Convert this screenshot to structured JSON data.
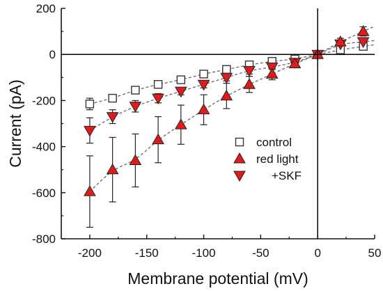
{
  "chart_data": {
    "type": "scatter",
    "xlabel": "Membrane potential (mV)",
    "ylabel": "Current (pA)",
    "xlim": [
      -225,
      50
    ],
    "ylim": [
      -800,
      200
    ],
    "xticks": [
      -200,
      -150,
      -100,
      -50,
      0,
      50
    ],
    "yticks": [
      200,
      0,
      -200,
      -400,
      -600,
      -800
    ],
    "grid": false,
    "legend_position": "center-right",
    "series": [
      {
        "name": "control",
        "marker": "open-square",
        "color": "#333333",
        "x": [
          -200,
          -180,
          -160,
          -140,
          -120,
          -100,
          -80,
          -60,
          -40,
          -20,
          0,
          20,
          40
        ],
        "y": [
          -215,
          -190,
          -155,
          -130,
          -110,
          -85,
          -65,
          -45,
          -30,
          -20,
          0,
          20,
          35
        ],
        "err": [
          25,
          15,
          15,
          15,
          15,
          15,
          10,
          10,
          10,
          8,
          8,
          15,
          15
        ]
      },
      {
        "name": "red light",
        "marker": "triangle-up",
        "color": "#e11b1b",
        "x": [
          -200,
          -180,
          -160,
          -140,
          -120,
          -100,
          -80,
          -60,
          -40,
          -20,
          0,
          20,
          40
        ],
        "y": [
          -595,
          -500,
          -460,
          -370,
          -305,
          -240,
          -180,
          -130,
          -85,
          -40,
          0,
          55,
          100
        ],
        "err": [
          155,
          140,
          115,
          100,
          85,
          65,
          55,
          35,
          25,
          15,
          8,
          15,
          20
        ]
      },
      {
        "name": "+SKF",
        "marker": "triangle-down",
        "color": "#e11b1b",
        "x": [
          -200,
          -180,
          -160,
          -140,
          -120,
          -100,
          -80,
          -60,
          -40,
          -20,
          0,
          20,
          40
        ],
        "y": [
          -330,
          -270,
          -225,
          -190,
          -160,
          -130,
          -100,
          -70,
          -55,
          -35,
          0,
          45,
          55
        ],
        "err": [
          55,
          30,
          25,
          20,
          15,
          15,
          15,
          15,
          10,
          10,
          8,
          12,
          12
        ]
      }
    ]
  }
}
